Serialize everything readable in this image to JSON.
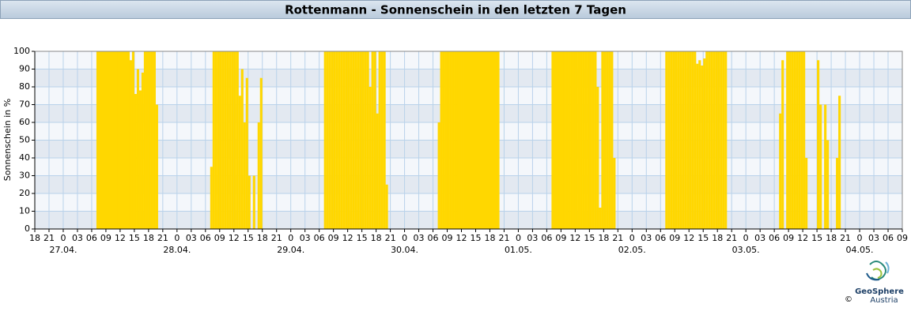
{
  "chart_data": {
    "type": "bar",
    "title": "Rottenmann - Sonnenschein in den letzten 7 Tagen",
    "y_label": "Sonnenschein in %",
    "color": "#ffd700",
    "grid": true,
    "xlim": [
      0,
      183
    ],
    "ylim": [
      0,
      100
    ],
    "yticks": [
      0,
      10,
      20,
      30,
      40,
      50,
      60,
      70,
      80,
      90,
      100
    ],
    "xticks": [
      {
        "value": 0,
        "label": "18"
      },
      {
        "value": 3,
        "label": "21"
      },
      {
        "value": 6,
        "label": "0"
      },
      {
        "value": 9,
        "label": "03"
      },
      {
        "value": 12,
        "label": "06"
      },
      {
        "value": 15,
        "label": "09"
      },
      {
        "value": 18,
        "label": "12"
      },
      {
        "value": 21,
        "label": "15"
      },
      {
        "value": 24,
        "label": "18"
      },
      {
        "value": 27,
        "label": "21"
      },
      {
        "value": 30,
        "label": "0"
      },
      {
        "value": 33,
        "label": "03"
      },
      {
        "value": 36,
        "label": "06"
      },
      {
        "value": 39,
        "label": "09"
      },
      {
        "value": 42,
        "label": "12"
      },
      {
        "value": 45,
        "label": "15"
      },
      {
        "value": 48,
        "label": "18"
      },
      {
        "value": 51,
        "label": "21"
      },
      {
        "value": 54,
        "label": "0"
      },
      {
        "value": 57,
        "label": "03"
      },
      {
        "value": 60,
        "label": "06"
      },
      {
        "value": 63,
        "label": "09"
      },
      {
        "value": 66,
        "label": "12"
      },
      {
        "value": 69,
        "label": "15"
      },
      {
        "value": 72,
        "label": "18"
      },
      {
        "value": 75,
        "label": "21"
      },
      {
        "value": 78,
        "label": "0"
      },
      {
        "value": 81,
        "label": "03"
      },
      {
        "value": 84,
        "label": "06"
      },
      {
        "value": 87,
        "label": "09"
      },
      {
        "value": 90,
        "label": "12"
      },
      {
        "value": 93,
        "label": "15"
      },
      {
        "value": 96,
        "label": "18"
      },
      {
        "value": 99,
        "label": "21"
      },
      {
        "value": 102,
        "label": "0"
      },
      {
        "value": 105,
        "label": "03"
      },
      {
        "value": 108,
        "label": "06"
      },
      {
        "value": 111,
        "label": "09"
      },
      {
        "value": 114,
        "label": "12"
      },
      {
        "value": 117,
        "label": "15"
      },
      {
        "value": 120,
        "label": "18"
      },
      {
        "value": 123,
        "label": "21"
      },
      {
        "value": 126,
        "label": "0"
      },
      {
        "value": 129,
        "label": "03"
      },
      {
        "value": 132,
        "label": "06"
      },
      {
        "value": 135,
        "label": "09"
      },
      {
        "value": 138,
        "label": "12"
      },
      {
        "value": 141,
        "label": "15"
      },
      {
        "value": 144,
        "label": "18"
      },
      {
        "value": 147,
        "label": "21"
      },
      {
        "value": 150,
        "label": "0"
      },
      {
        "value": 153,
        "label": "03"
      },
      {
        "value": 156,
        "label": "06"
      },
      {
        "value": 159,
        "label": "09"
      },
      {
        "value": 162,
        "label": "12"
      },
      {
        "value": 165,
        "label": "15"
      },
      {
        "value": 168,
        "label": "18"
      },
      {
        "value": 171,
        "label": "21"
      },
      {
        "value": 174,
        "label": "0"
      },
      {
        "value": 177,
        "label": "03"
      },
      {
        "value": 180,
        "label": "06"
      },
      {
        "value": 183,
        "label": "09"
      }
    ],
    "date_labels": [
      {
        "value": 6,
        "label": "27.04."
      },
      {
        "value": 30,
        "label": "28.04."
      },
      {
        "value": 54,
        "label": "29.04."
      },
      {
        "value": 78,
        "label": "30.04."
      },
      {
        "value": 102,
        "label": "01.05."
      },
      {
        "value": 126,
        "label": "02.05."
      },
      {
        "value": 150,
        "label": "03.05."
      },
      {
        "value": 174,
        "label": "04.05."
      }
    ],
    "x": [
      13,
      13.5,
      14,
      14.5,
      15,
      15.5,
      16,
      16.5,
      17,
      17.5,
      18,
      18.5,
      19,
      19.5,
      20,
      20.5,
      21,
      21.5,
      22,
      22.5,
      23,
      23.5,
      24,
      24.5,
      25,
      25.5,
      37,
      37.5,
      38,
      38.5,
      39,
      39.5,
      40,
      40.5,
      41,
      41.5,
      42,
      42.5,
      43,
      43.5,
      44,
      44.5,
      45,
      46,
      47,
      47.5,
      61,
      61.5,
      62,
      62.5,
      63,
      63.5,
      64,
      64.5,
      65,
      65.5,
      66,
      66.5,
      67,
      67.5,
      68,
      68.5,
      69,
      69.5,
      70,
      70.5,
      71,
      71.5,
      72,
      72.5,
      73,
      73.5,
      74,
      85,
      85.5,
      86,
      86.5,
      87,
      87.5,
      88,
      88.5,
      89,
      89.5,
      90,
      90.5,
      91,
      91.5,
      92,
      92.5,
      93,
      93.5,
      94,
      94.5,
      95,
      95.5,
      96,
      96.5,
      97,
      97.5,
      109,
      109.5,
      110,
      110.5,
      111,
      111.5,
      112,
      112.5,
      113,
      113.5,
      114,
      114.5,
      115,
      115.5,
      116,
      116.5,
      117,
      117.5,
      118,
      118.5,
      119,
      119.5,
      120,
      120.5,
      121,
      121.5,
      122,
      133,
      133.5,
      134,
      134.5,
      135,
      135.5,
      136,
      136.5,
      137,
      137.5,
      138,
      138.5,
      139,
      139.5,
      140,
      140.5,
      141,
      141.5,
      142,
      142.5,
      143,
      143.5,
      144,
      144.5,
      145,
      145.5,
      157,
      157.5,
      158.5,
      159,
      159.5,
      160,
      160.5,
      161,
      161.5,
      162,
      162.5,
      165,
      165.5,
      166.5,
      167,
      169,
      169.5
    ],
    "values": [
      100,
      100,
      100,
      100,
      100,
      100,
      100,
      100,
      100,
      100,
      100,
      100,
      100,
      100,
      95,
      100,
      76,
      90,
      78,
      88,
      100,
      100,
      100,
      100,
      100,
      70,
      35,
      100,
      100,
      100,
      100,
      100,
      100,
      100,
      100,
      100,
      100,
      100,
      75,
      90,
      60,
      85,
      30,
      30,
      60,
      85,
      100,
      100,
      100,
      100,
      100,
      100,
      100,
      100,
      100,
      100,
      100,
      100,
      100,
      100,
      100,
      100,
      100,
      100,
      100,
      80,
      100,
      100,
      65,
      100,
      100,
      100,
      25,
      60,
      100,
      100,
      100,
      100,
      100,
      100,
      100,
      100,
      100,
      100,
      100,
      100,
      100,
      100,
      100,
      100,
      100,
      100,
      100,
      100,
      100,
      100,
      100,
      100,
      100,
      100,
      100,
      100,
      100,
      100,
      100,
      100,
      100,
      100,
      100,
      100,
      100,
      100,
      100,
      100,
      100,
      100,
      100,
      100,
      80,
      12,
      100,
      100,
      100,
      100,
      100,
      40,
      100,
      100,
      100,
      100,
      100,
      100,
      100,
      100,
      100,
      100,
      100,
      100,
      100,
      93,
      95,
      92,
      96,
      100,
      100,
      100,
      100,
      100,
      100,
      100,
      100,
      100,
      65,
      95,
      100,
      100,
      100,
      100,
      100,
      100,
      100,
      100,
      40,
      95,
      70,
      70,
      50,
      40,
      75
    ]
  },
  "logo": {
    "name": "GeoSphere",
    "country": "Austria",
    "copyright": "©"
  }
}
